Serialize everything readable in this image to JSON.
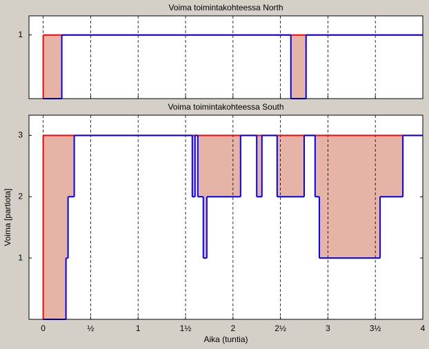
{
  "chart_data": [
    {
      "type": "step",
      "title": "Voima toimintakohteessa North",
      "xlim": [
        -0.15,
        4
      ],
      "ylim": [
        0,
        1.3
      ],
      "xticks": [
        0,
        0.5,
        1,
        1.5,
        2,
        2.5,
        3,
        3.5,
        4
      ],
      "yticks": [
        1
      ],
      "grid": true,
      "fill_color": "#e6b4a6",
      "series": [
        {
          "color": "#ff0000",
          "x": [
            0
          ],
          "values": [
            1
          ]
        },
        {
          "color": "#0000ff",
          "x": [
            0,
            0.196,
            2.61,
            2.77
          ],
          "values": [
            0,
            1,
            0,
            1
          ]
        }
      ]
    },
    {
      "type": "step",
      "title": "Voima toimintakohteessa South",
      "x_label": "Aika (tuntia)",
      "y_label": "Voima [partiota]",
      "xlim": [
        -0.15,
        4
      ],
      "ylim": [
        0,
        3.33
      ],
      "xticks": [
        0,
        {
          "value": 0.5,
          "label": "½"
        },
        1,
        {
          "value": 1.5,
          "label": "1½"
        },
        2,
        {
          "value": 2.5,
          "label": "2½"
        },
        3,
        {
          "value": 3.5,
          "label": "3½"
        },
        4
      ],
      "yticks": [
        1,
        2,
        3
      ],
      "grid": true,
      "fill_color": "#e6b4a6",
      "series": [
        {
          "color": "#ff0000",
          "x": [
            0
          ],
          "values": [
            3
          ]
        },
        {
          "color": "#0000ff",
          "x": [
            0,
            0.24,
            0.262,
            0.327,
            1.571,
            1.6,
            1.629,
            1.687,
            1.724,
            2.08,
            2.25,
            2.305,
            2.465,
            2.75,
            2.865,
            2.91,
            3.55,
            3.79
          ],
          "values": [
            0,
            1,
            2,
            3,
            2,
            3,
            2,
            1,
            2,
            3,
            2,
            3,
            2,
            3,
            2,
            1,
            2,
            3
          ]
        }
      ]
    }
  ]
}
